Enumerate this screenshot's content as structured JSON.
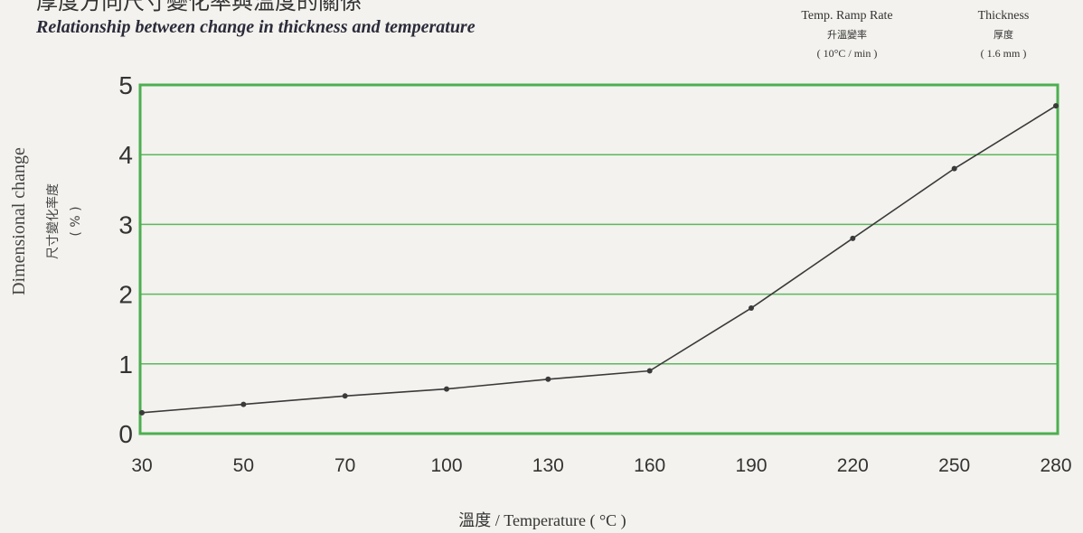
{
  "header": {
    "title_cn": "厚度方向尺寸變化率與溫度的關係",
    "title_en": "Relationship between change in thickness and temperature"
  },
  "conditions": [
    {
      "label": "Temp. Ramp Rate",
      "label_cn": "升溫變率",
      "value": "( 10°C / min )"
    },
    {
      "label": "Thickness",
      "label_cn": "厚度",
      "value": "( 1.6 mm )"
    }
  ],
  "chart_data": {
    "type": "line",
    "x_categories": [
      "30",
      "50",
      "70",
      "100",
      "130",
      "160",
      "190",
      "220",
      "250",
      "280"
    ],
    "x_tick_labels": [
      "30",
      "50",
      "70",
      "100",
      "130",
      "160",
      "190",
      "220",
      "250",
      "280"
    ],
    "series": [
      {
        "values": [
          0.3,
          0.42,
          0.54,
          0.64,
          0.78,
          0.9,
          1.8,
          2.8,
          3.8,
          4.7
        ]
      }
    ],
    "ylim": [
      0,
      5
    ],
    "y_ticks": [
      0,
      1,
      2,
      3,
      4,
      5
    ],
    "y_tick_labels": [
      "0",
      "1",
      "2",
      "3",
      "4",
      "5"
    ],
    "xlabel": "溫度 / Temperature ( °C )",
    "ylabel_en": "Dimensional change",
    "ylabel_cn": "尺寸變化率度",
    "ylabel_unit": "( % )",
    "grid": "horizontal",
    "colors": {
      "frame": "#4caf50",
      "grid": "#5cb85c",
      "line": "#3a3a3a"
    }
  }
}
